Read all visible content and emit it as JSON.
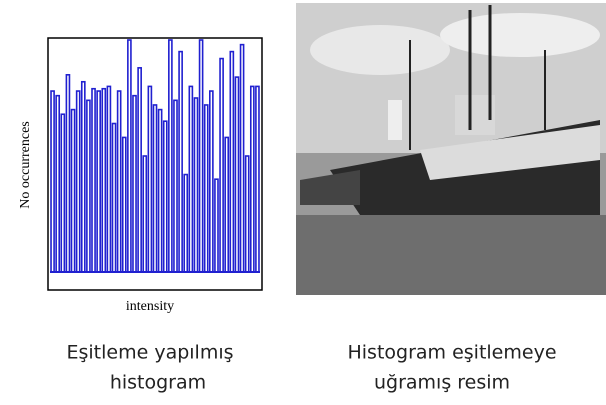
{
  "chart_data": {
    "type": "bar",
    "xlabel": "intensity",
    "ylabel": "No occurrences",
    "color": "#2020d0",
    "values": [
      78,
      76,
      68,
      85,
      70,
      78,
      82,
      74,
      79,
      78,
      79,
      80,
      64,
      78,
      58,
      100,
      76,
      88,
      50,
      80,
      72,
      70,
      65,
      100,
      74,
      95,
      42,
      80,
      75,
      100,
      72,
      78,
      40,
      92,
      58,
      95,
      84,
      98,
      50,
      80,
      80
    ],
    "ylim": [
      0,
      100
    ]
  },
  "captions": {
    "left": [
      "Eşitleme yapılmış",
      "histogram"
    ],
    "right": [
      "Histogram eşitlemeye",
      "uğramış resim"
    ]
  }
}
